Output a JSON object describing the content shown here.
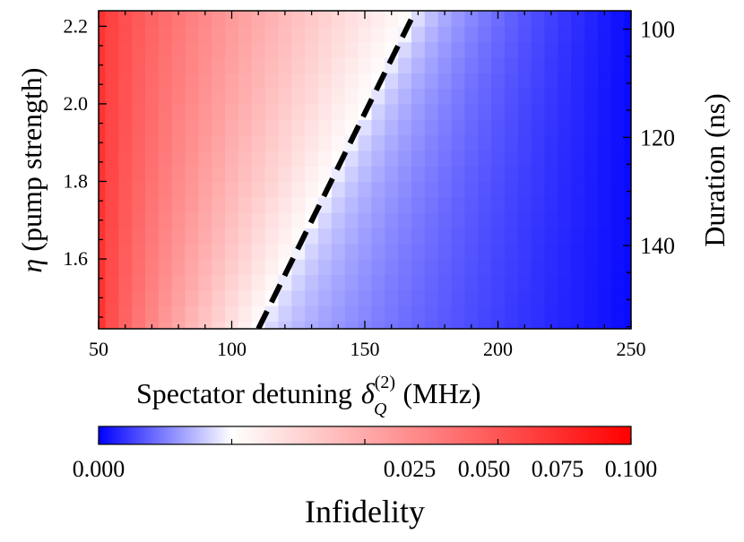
{
  "chart_data": {
    "type": "heatmap",
    "title": "",
    "xlabel": "Spectator detuning",
    "xlabel_symbol": "δ",
    "xlabel_sub": "Q",
    "xlabel_sup": "(2)",
    "xlabel_unit": "(MHz)",
    "ylabel_symbol": "η",
    "ylabel": "(pump strength)",
    "y2label": "Duration (ns)",
    "xlim": [
      50,
      250
    ],
    "ylim": [
      1.42,
      2.24
    ],
    "y2lim": [
      155.4,
      96.6
    ],
    "xticks": [
      50,
      100,
      150,
      200,
      250
    ],
    "yticks": [
      1.6,
      1.8,
      2.0,
      2.2
    ],
    "y2ticks": [
      100,
      120,
      140
    ],
    "x_tick_labels": [
      "50",
      "100",
      "150",
      "200",
      "250"
    ],
    "y_tick_labels": [
      "1.6",
      "1.8",
      "2.0",
      "2.2"
    ],
    "y2_tick_labels": [
      "100",
      "120",
      "140"
    ],
    "grid": false,
    "colormap": "bwr",
    "color_center": 0.025,
    "x": [
      50,
      55,
      60,
      65,
      70,
      75,
      80,
      85,
      90,
      95,
      100,
      105,
      110,
      115,
      120,
      125,
      130,
      135,
      140,
      145,
      150,
      155,
      160,
      165,
      170,
      175,
      180,
      185,
      190,
      195,
      200,
      205,
      210,
      215,
      220,
      225,
      230,
      235,
      240,
      245,
      250
    ],
    "y": [
      1.42,
      1.46,
      1.5,
      1.54,
      1.58,
      1.62,
      1.66,
      1.7,
      1.74,
      1.78,
      1.82,
      1.86,
      1.9,
      1.94,
      1.98,
      2.02,
      2.06,
      2.1,
      2.14,
      2.18,
      2.22
    ],
    "z_description": "Infidelity decreases with increasing spectator detuning; approx 0.085 at 50 MHz, 0.025 along the dashed boundary, approaching 0.000 at 250 MHz",
    "z_at_50MHz": 0.085,
    "z_at_250MHz": 0.001,
    "boundary_line": {
      "style": "dashed",
      "color": "#000000",
      "x": [
        110,
        169
      ],
      "y": [
        1.42,
        2.24
      ]
    },
    "colorbar": {
      "label": "Infidelity",
      "range": [
        0.0,
        0.1
      ],
      "tick_labels": [
        "0.000",
        "0.025",
        "0.050",
        "0.075",
        "0.100"
      ],
      "colors": [
        "#0000ff",
        "#ffffff",
        "#ff0000"
      ]
    }
  }
}
